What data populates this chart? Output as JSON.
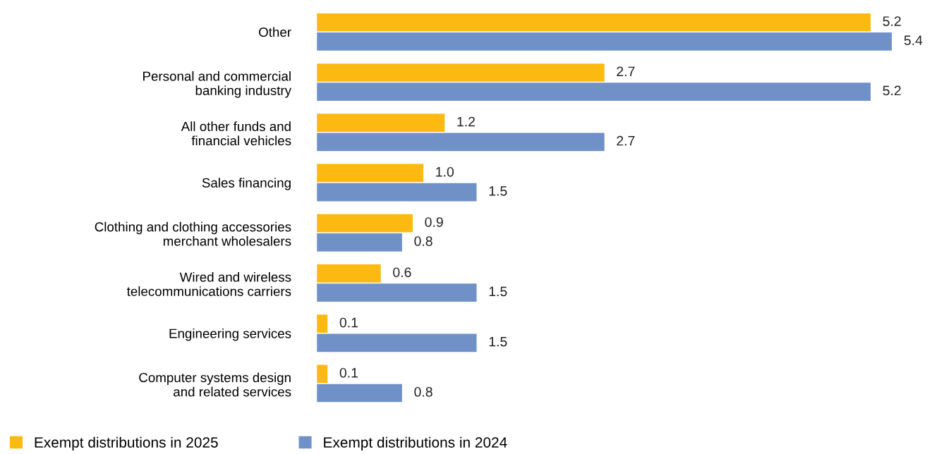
{
  "chart_data": {
    "type": "bar",
    "orientation": "horizontal",
    "legend": "bottom left",
    "grid": false,
    "categories": [
      "Other",
      "Personal and commercial\nbanking industry",
      "All other funds and\nfinancial vehicles",
      "Sales financing",
      "Clothing and clothing accessories\nmerchant wholesalers",
      "Wired and wireless\ntelecommunications carriers",
      "Engineering services",
      "Computer systems design\nand related services"
    ],
    "series": [
      {
        "name": "Exempt distributions in 2025",
        "color": "#fbb911",
        "values": [
          5.2,
          2.7,
          1.2,
          1.0,
          0.9,
          0.6,
          0.1,
          0.1
        ],
        "value_labels": [
          "5.2",
          "2.7",
          "1.2",
          "1.0",
          "0.9",
          "0.6",
          "0.1",
          "0.1"
        ]
      },
      {
        "name": "Exempt distributions in 2024",
        "color": "#7090c8",
        "values": [
          5.4,
          5.2,
          2.7,
          1.5,
          0.8,
          1.5,
          1.5,
          0.8
        ],
        "value_labels": [
          "5.4",
          "5.2",
          "2.7",
          "1.5",
          "0.8",
          "1.5",
          "1.5",
          "0.8"
        ]
      }
    ]
  }
}
